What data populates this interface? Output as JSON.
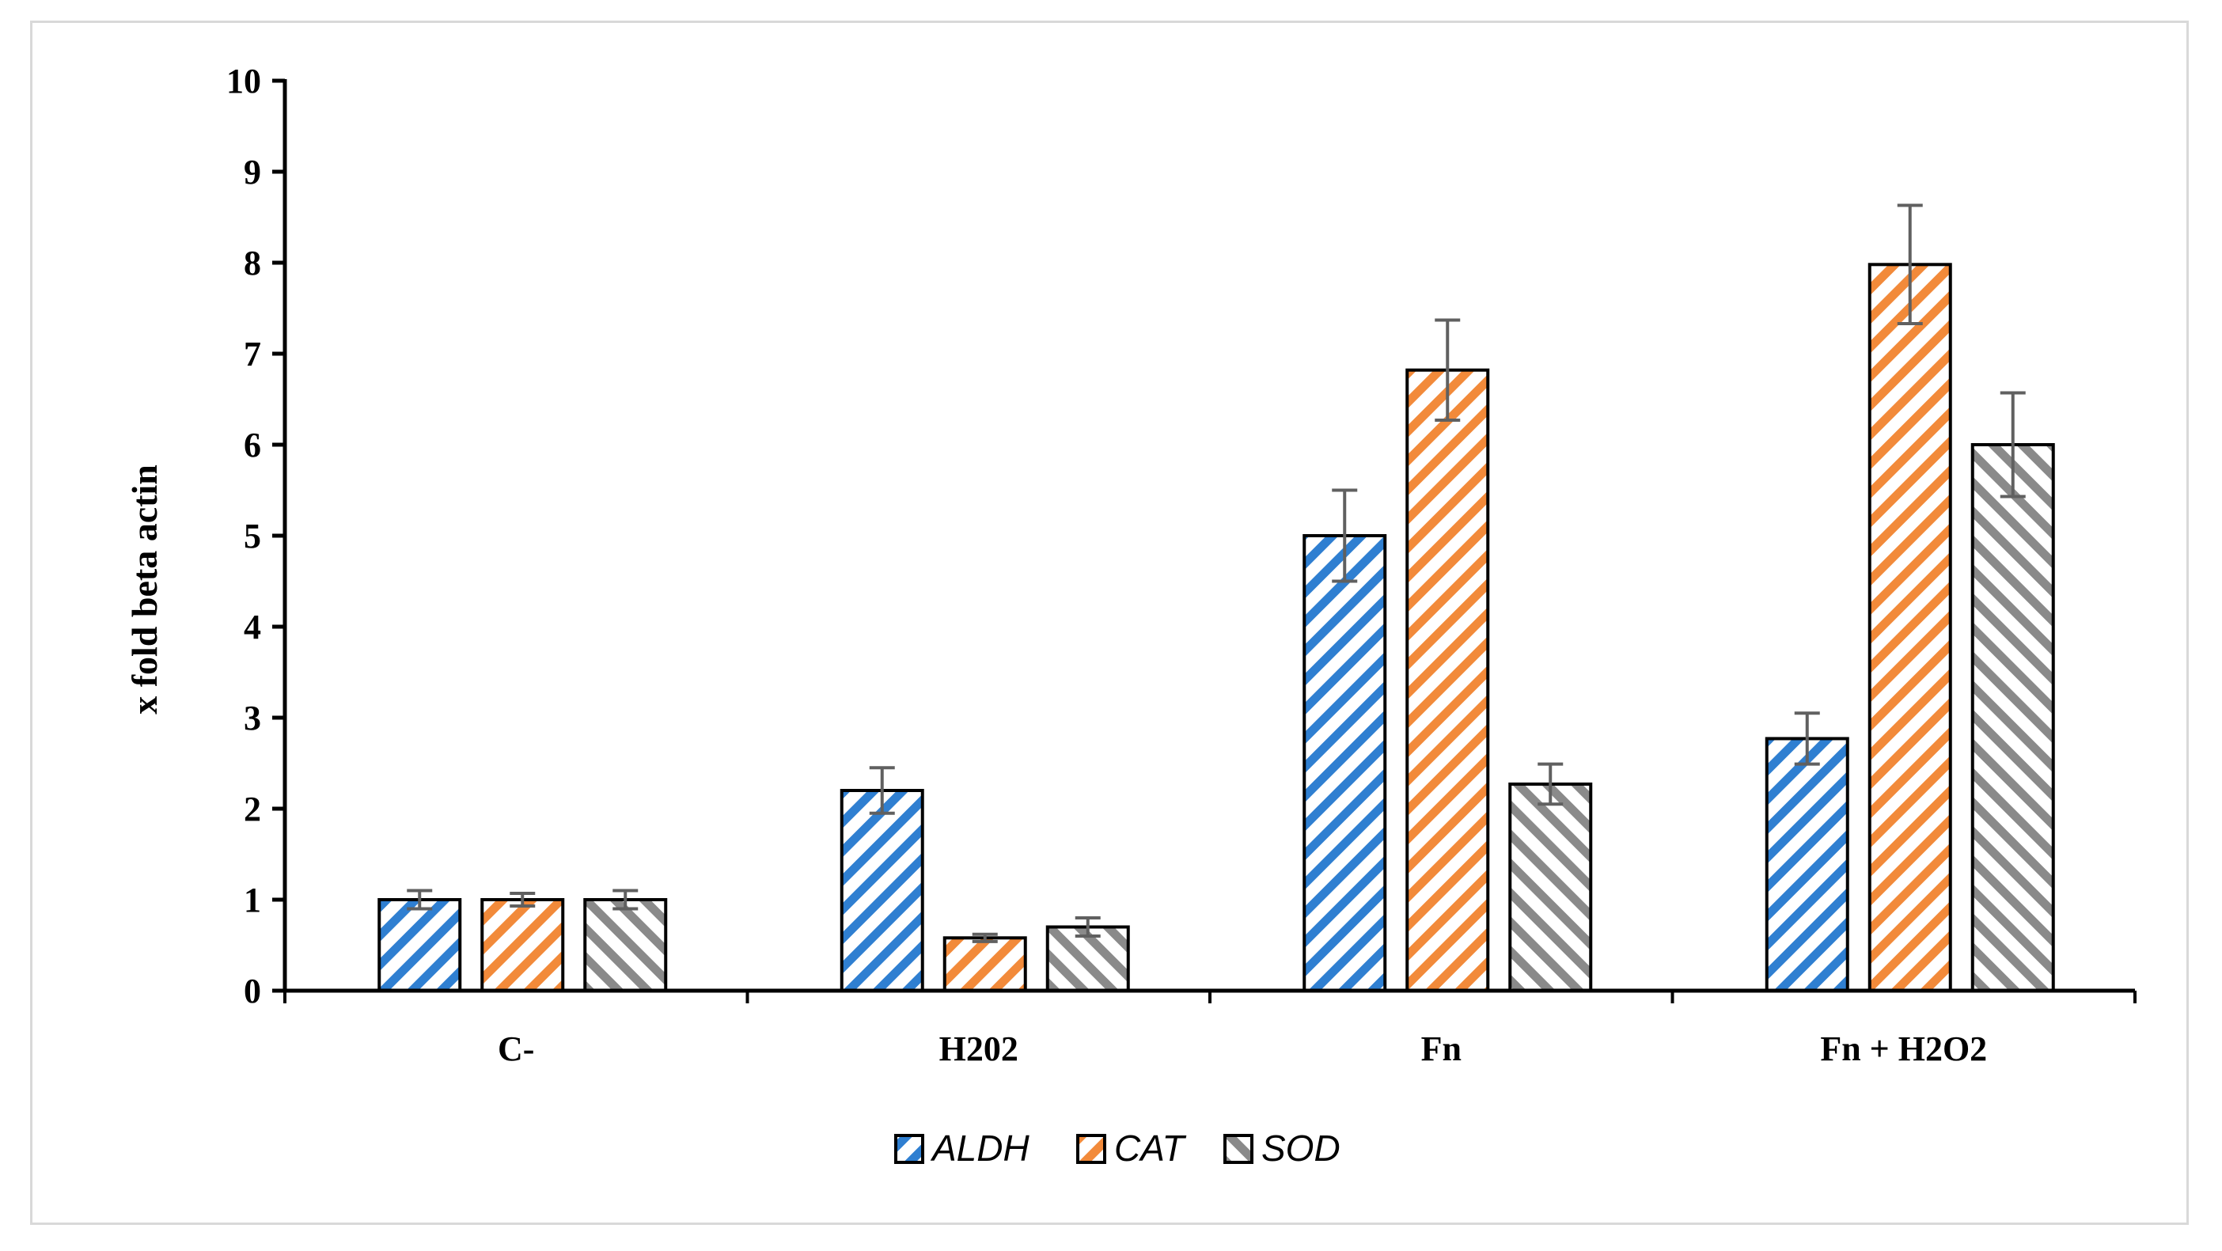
{
  "chart_data": {
    "type": "bar",
    "title": "",
    "xlabel": "",
    "ylabel": "x fold beta  actin",
    "ylim": [
      0,
      10
    ],
    "yticks": [
      0,
      1,
      2,
      3,
      4,
      5,
      6,
      7,
      8,
      9,
      10
    ],
    "categories": [
      "C-",
      "H202",
      "Fn",
      "Fn + H2O2"
    ],
    "series": [
      {
        "name": "ALDH",
        "color": "#2f7fd1",
        "values": [
          1.0,
          2.2,
          5.0,
          2.77
        ],
        "errors": [
          0.1,
          0.25,
          0.5,
          0.28
        ]
      },
      {
        "name": "CAT",
        "color": "#f28a3a",
        "values": [
          1.0,
          0.58,
          6.82,
          7.98
        ],
        "errors": [
          0.07,
          0.04,
          0.55,
          0.65
        ]
      },
      {
        "name": "SOD",
        "color": "#8a8a8a",
        "values": [
          1.0,
          0.7,
          2.27,
          6.0
        ],
        "errors": [
          0.1,
          0.1,
          0.22,
          0.57
        ]
      }
    ],
    "legend_position": "bottom",
    "grid": false,
    "error_bar_color": "#606060"
  }
}
